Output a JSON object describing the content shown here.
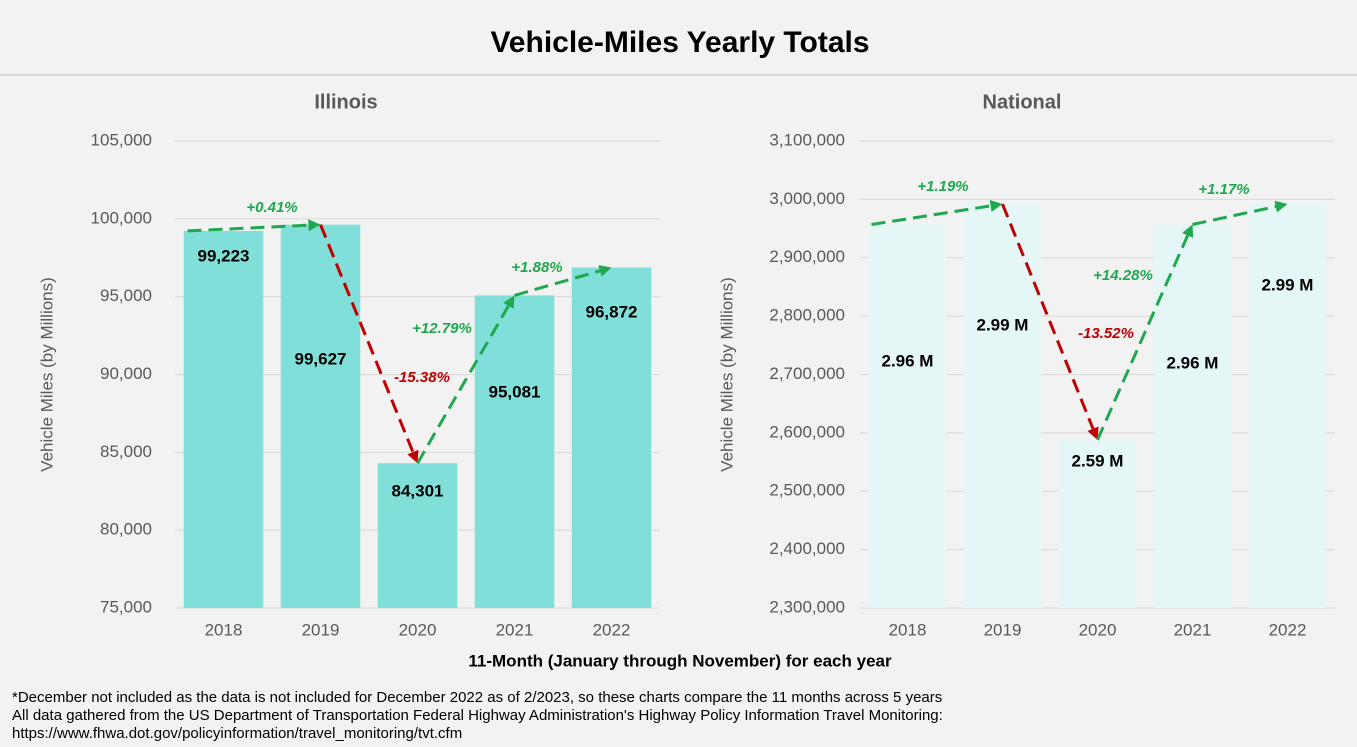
{
  "title": "Vehicle-Miles Yearly Totals",
  "xlabel": "11-Month (January through November) for each year",
  "notes": [
    "*December not included as the data is not included for December 2022 as of 2/2023, so these charts compare the 11 months across 5 years",
    "All data gathered from the US Department of Transportation Federal Highway Administration's Highway Policy Information Travel Monitoring:",
    "https://www.fhwa.dot.gov/policyinformation/travel_monitoring/tvt.cfm"
  ],
  "chart_data": [
    {
      "type": "bar",
      "title": "Illinois",
      "ylabel": "Vehicle Miles (by Millions)",
      "categories": [
        "2018",
        "2019",
        "2020",
        "2021",
        "2022"
      ],
      "values": [
        99223,
        99627,
        84301,
        95081,
        96872
      ],
      "value_labels": [
        "99,223",
        "99,627",
        "84,301",
        "95,081",
        "96,872"
      ],
      "color": "#80dfd9",
      "ylim": [
        75000,
        105000
      ],
      "yticks": [
        {
          "value": 75000,
          "label": "75,000"
        },
        {
          "value": 80000,
          "label": "80,000"
        },
        {
          "value": 85000,
          "label": "85,000"
        },
        {
          "value": 90000,
          "label": "90,000"
        },
        {
          "value": 95000,
          "label": "95,000"
        },
        {
          "value": 100000,
          "label": "100,000"
        },
        {
          "value": 105000,
          "label": "105,000"
        }
      ],
      "grid": true,
      "annotations": [
        {
          "text": "+0.41%",
          "color": "#1fa84f"
        },
        {
          "text": "-15.38%",
          "color": "#c00000"
        },
        {
          "text": "+12.79%",
          "color": "#1fa84f"
        },
        {
          "text": "+1.88%",
          "color": "#1fa84f"
        }
      ]
    },
    {
      "type": "bar",
      "title": "National",
      "ylabel": "Vehicle Miles (by Millions)",
      "categories": [
        "2018",
        "2019",
        "2020",
        "2021",
        "2022"
      ],
      "values": [
        2957000,
        2992000,
        2588000,
        2957000,
        2992000
      ],
      "value_labels": [
        "2.96 M",
        "2.99 M",
        "2.59 M",
        "2.96 M",
        "2.99 M"
      ],
      "color": "#e4f7f6",
      "ylim": [
        2300000,
        3100000
      ],
      "yticks": [
        {
          "value": 2300000,
          "label": "2,300,000"
        },
        {
          "value": 2400000,
          "label": "2,400,000"
        },
        {
          "value": 2500000,
          "label": "2,500,000"
        },
        {
          "value": 2600000,
          "label": "2,600,000"
        },
        {
          "value": 2700000,
          "label": "2,700,000"
        },
        {
          "value": 2800000,
          "label": "2,800,000"
        },
        {
          "value": 2900000,
          "label": "2,900,000"
        },
        {
          "value": 3000000,
          "label": "3,000,000"
        },
        {
          "value": 3100000,
          "label": "3,100,000"
        }
      ],
      "grid": true,
      "annotations": [
        {
          "text": "+1.19%",
          "color": "#1fa84f"
        },
        {
          "text": "-13.52%",
          "color": "#c00000"
        },
        {
          "text": "+14.28%",
          "color": "#1fa84f"
        },
        {
          "text": "+1.17%",
          "color": "#1fa84f"
        }
      ]
    }
  ]
}
